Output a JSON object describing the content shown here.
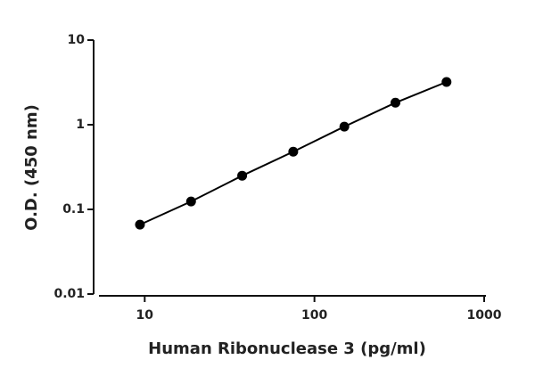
{
  "chart_data": {
    "type": "line",
    "x_label": "Human Ribonuclease 3 (pg/ml)",
    "y_label": "O.D. (450 nm)",
    "x": [
      9.375,
      18.75,
      37.5,
      75,
      150,
      300,
      600
    ],
    "values": [
      0.066,
      0.124,
      0.25,
      0.48,
      0.95,
      1.82,
      3.2
    ],
    "color": "#000000",
    "x_log": true,
    "y_log": true,
    "xlim": [
      5,
      1000
    ],
    "ylim": [
      0.01,
      10
    ],
    "xticks": [
      10,
      100,
      1000
    ],
    "yticks": [
      0.01,
      0.1,
      1,
      10
    ]
  }
}
